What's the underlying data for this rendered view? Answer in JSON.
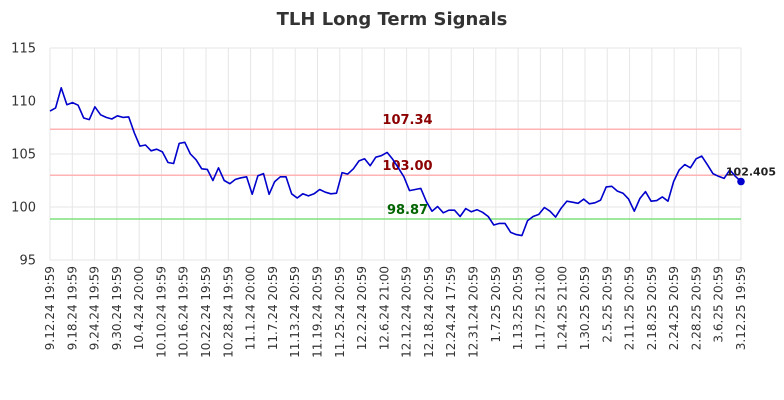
{
  "chart_data": {
    "type": "line",
    "title": "TLH Long Term Signals",
    "xlabel": "",
    "ylabel": "",
    "ylim": [
      95,
      115
    ],
    "yticks": [
      95,
      100,
      105,
      110,
      115
    ],
    "grid": true,
    "x_tick_labels": [
      "9.12.24 19:59",
      "9.18.24 19:59",
      "9.24.24 19:59",
      "9.30.24 19:59",
      "10.4.24 20:00",
      "10.10.24 19:59",
      "10.16.24 19:59",
      "10.22.24 19:59",
      "10.28.24 19:59",
      "11.1.24 20:00",
      "11.7.24 20:59",
      "11.13.24 20:59",
      "11.19.24 20:59",
      "11.25.24 20:59",
      "12.2.24 20:59",
      "12.6.24 21:00",
      "12.12.24 20:59",
      "12.18.24 20:59",
      "12.24.24 17:59",
      "12.31.24 20:59",
      "1.7.25 20:59",
      "1.13.25 20:59",
      "1.17.25 21:00",
      "1.24.25 21:00",
      "1.30.25 20:59",
      "2.5.25 20:59",
      "2.11.25 20:59",
      "2.18.25 20:59",
      "2.24.25 20:59",
      "2.28.25 20:59",
      "3.6.25 20:59",
      "3.12.25 19:59"
    ],
    "series": [
      {
        "color": "#0000cc",
        "values": [
          109.05,
          109.35,
          111.25,
          109.65,
          109.85,
          109.6,
          108.4,
          108.25,
          109.45,
          108.7,
          108.45,
          108.3,
          108.6,
          108.45,
          108.5,
          107.0,
          105.75,
          105.85,
          105.3,
          105.45,
          105.2,
          104.2,
          104.1,
          106.0,
          106.1,
          105.0,
          104.45,
          103.6,
          103.55,
          102.5,
          103.7,
          102.5,
          102.2,
          102.6,
          102.75,
          102.85,
          101.2,
          102.95,
          103.15,
          101.2,
          102.4,
          102.85,
          102.85,
          101.25,
          100.85,
          101.25,
          101.05,
          101.25,
          101.65,
          101.4,
          101.25,
          101.3,
          103.25,
          103.1,
          103.6,
          104.35,
          104.55,
          103.9,
          104.7,
          104.85,
          105.15,
          104.5,
          103.7,
          102.85,
          101.55,
          101.65,
          101.75,
          100.5,
          99.6,
          100.05,
          99.45,
          99.7,
          99.7,
          99.1,
          99.85,
          99.55,
          99.75,
          99.5,
          99.1,
          98.3,
          98.45,
          98.45,
          97.6,
          97.4,
          97.3,
          98.7,
          99.1,
          99.3,
          99.95,
          99.6,
          99.05,
          99.9,
          100.55,
          100.45,
          100.35,
          100.75,
          100.3,
          100.4,
          100.65,
          101.9,
          101.95,
          101.5,
          101.3,
          100.75,
          99.6,
          100.8,
          101.45,
          100.55,
          100.6,
          100.95,
          100.55,
          102.4,
          103.5,
          104.0,
          103.7,
          104.55,
          104.8,
          104.0,
          103.15,
          102.9,
          102.7,
          103.5,
          102.9,
          102.405
        ]
      }
    ],
    "last_point": {
      "value": 102.405,
      "label": "102.405",
      "color": "#0000cc"
    },
    "reference_lines": [
      {
        "value": 107.34,
        "label": "107.34",
        "line_color": "#ffb3b3",
        "label_color": "#8b0000"
      },
      {
        "value": 103.0,
        "label": "103.00",
        "line_color": "#ffb3b3",
        "label_color": "#8b0000"
      },
      {
        "value": 98.87,
        "label": "98.87",
        "line_color": "#7ee07e",
        "label_color": "#006400"
      }
    ]
  }
}
